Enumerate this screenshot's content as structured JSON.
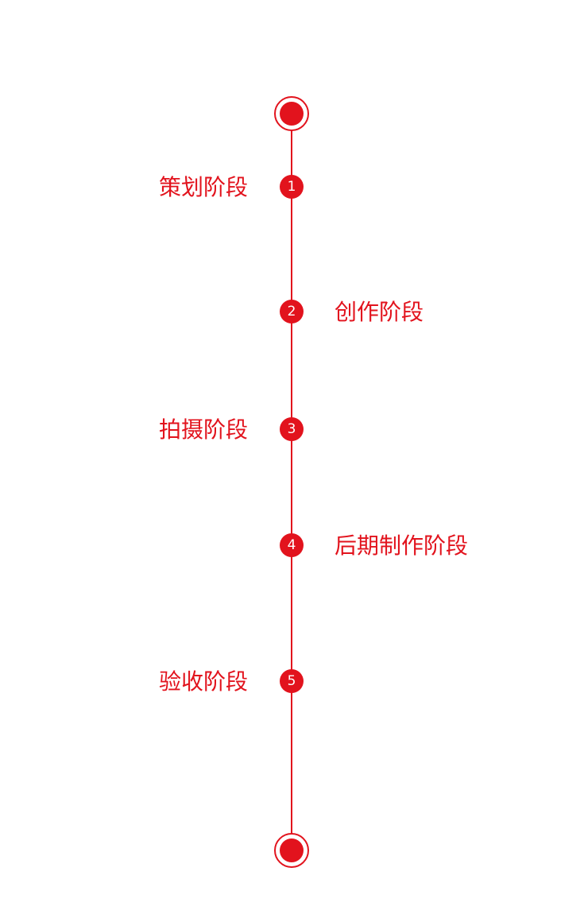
{
  "steps": [
    {
      "number": "1",
      "label": "策划阶段"
    },
    {
      "number": "2",
      "label": "创作阶段"
    },
    {
      "number": "3",
      "label": "拍摄阶段"
    },
    {
      "number": "4",
      "label": "后期制作阶段"
    },
    {
      "number": "5",
      "label": "验收阶段"
    }
  ]
}
